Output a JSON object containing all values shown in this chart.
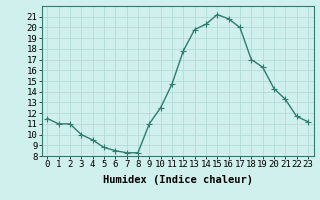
{
  "x": [
    0,
    1,
    2,
    3,
    4,
    5,
    6,
    7,
    8,
    9,
    10,
    11,
    12,
    13,
    14,
    15,
    16,
    17,
    18,
    19,
    20,
    21,
    22,
    23
  ],
  "y": [
    11.5,
    11.0,
    11.0,
    10.0,
    9.5,
    8.8,
    8.5,
    8.3,
    8.3,
    11.0,
    12.5,
    14.7,
    17.8,
    19.8,
    20.3,
    21.2,
    20.8,
    20.0,
    17.0,
    16.3,
    14.3,
    13.3,
    11.7,
    11.2
  ],
  "line_color": "#2e7d6e",
  "marker": "+",
  "marker_size": 4,
  "bg_color": "#cff0ec",
  "grid_color": "#b0d8d4",
  "xlabel": "Humidex (Indice chaleur)",
  "ylim": [
    8,
    22
  ],
  "xlim": [
    -0.5,
    23.5
  ],
  "yticks": [
    8,
    9,
    10,
    11,
    12,
    13,
    14,
    15,
    16,
    17,
    18,
    19,
    20,
    21
  ],
  "xtick_labels": [
    "0",
    "1",
    "2",
    "3",
    "4",
    "5",
    "6",
    "7",
    "8",
    "9",
    "10",
    "11",
    "12",
    "13",
    "14",
    "15",
    "16",
    "17",
    "18",
    "19",
    "20",
    "21",
    "22",
    "23"
  ],
  "tick_fontsize": 6.5,
  "xlabel_fontsize": 7.5,
  "line_width": 1.0,
  "marker_edge_width": 0.8
}
